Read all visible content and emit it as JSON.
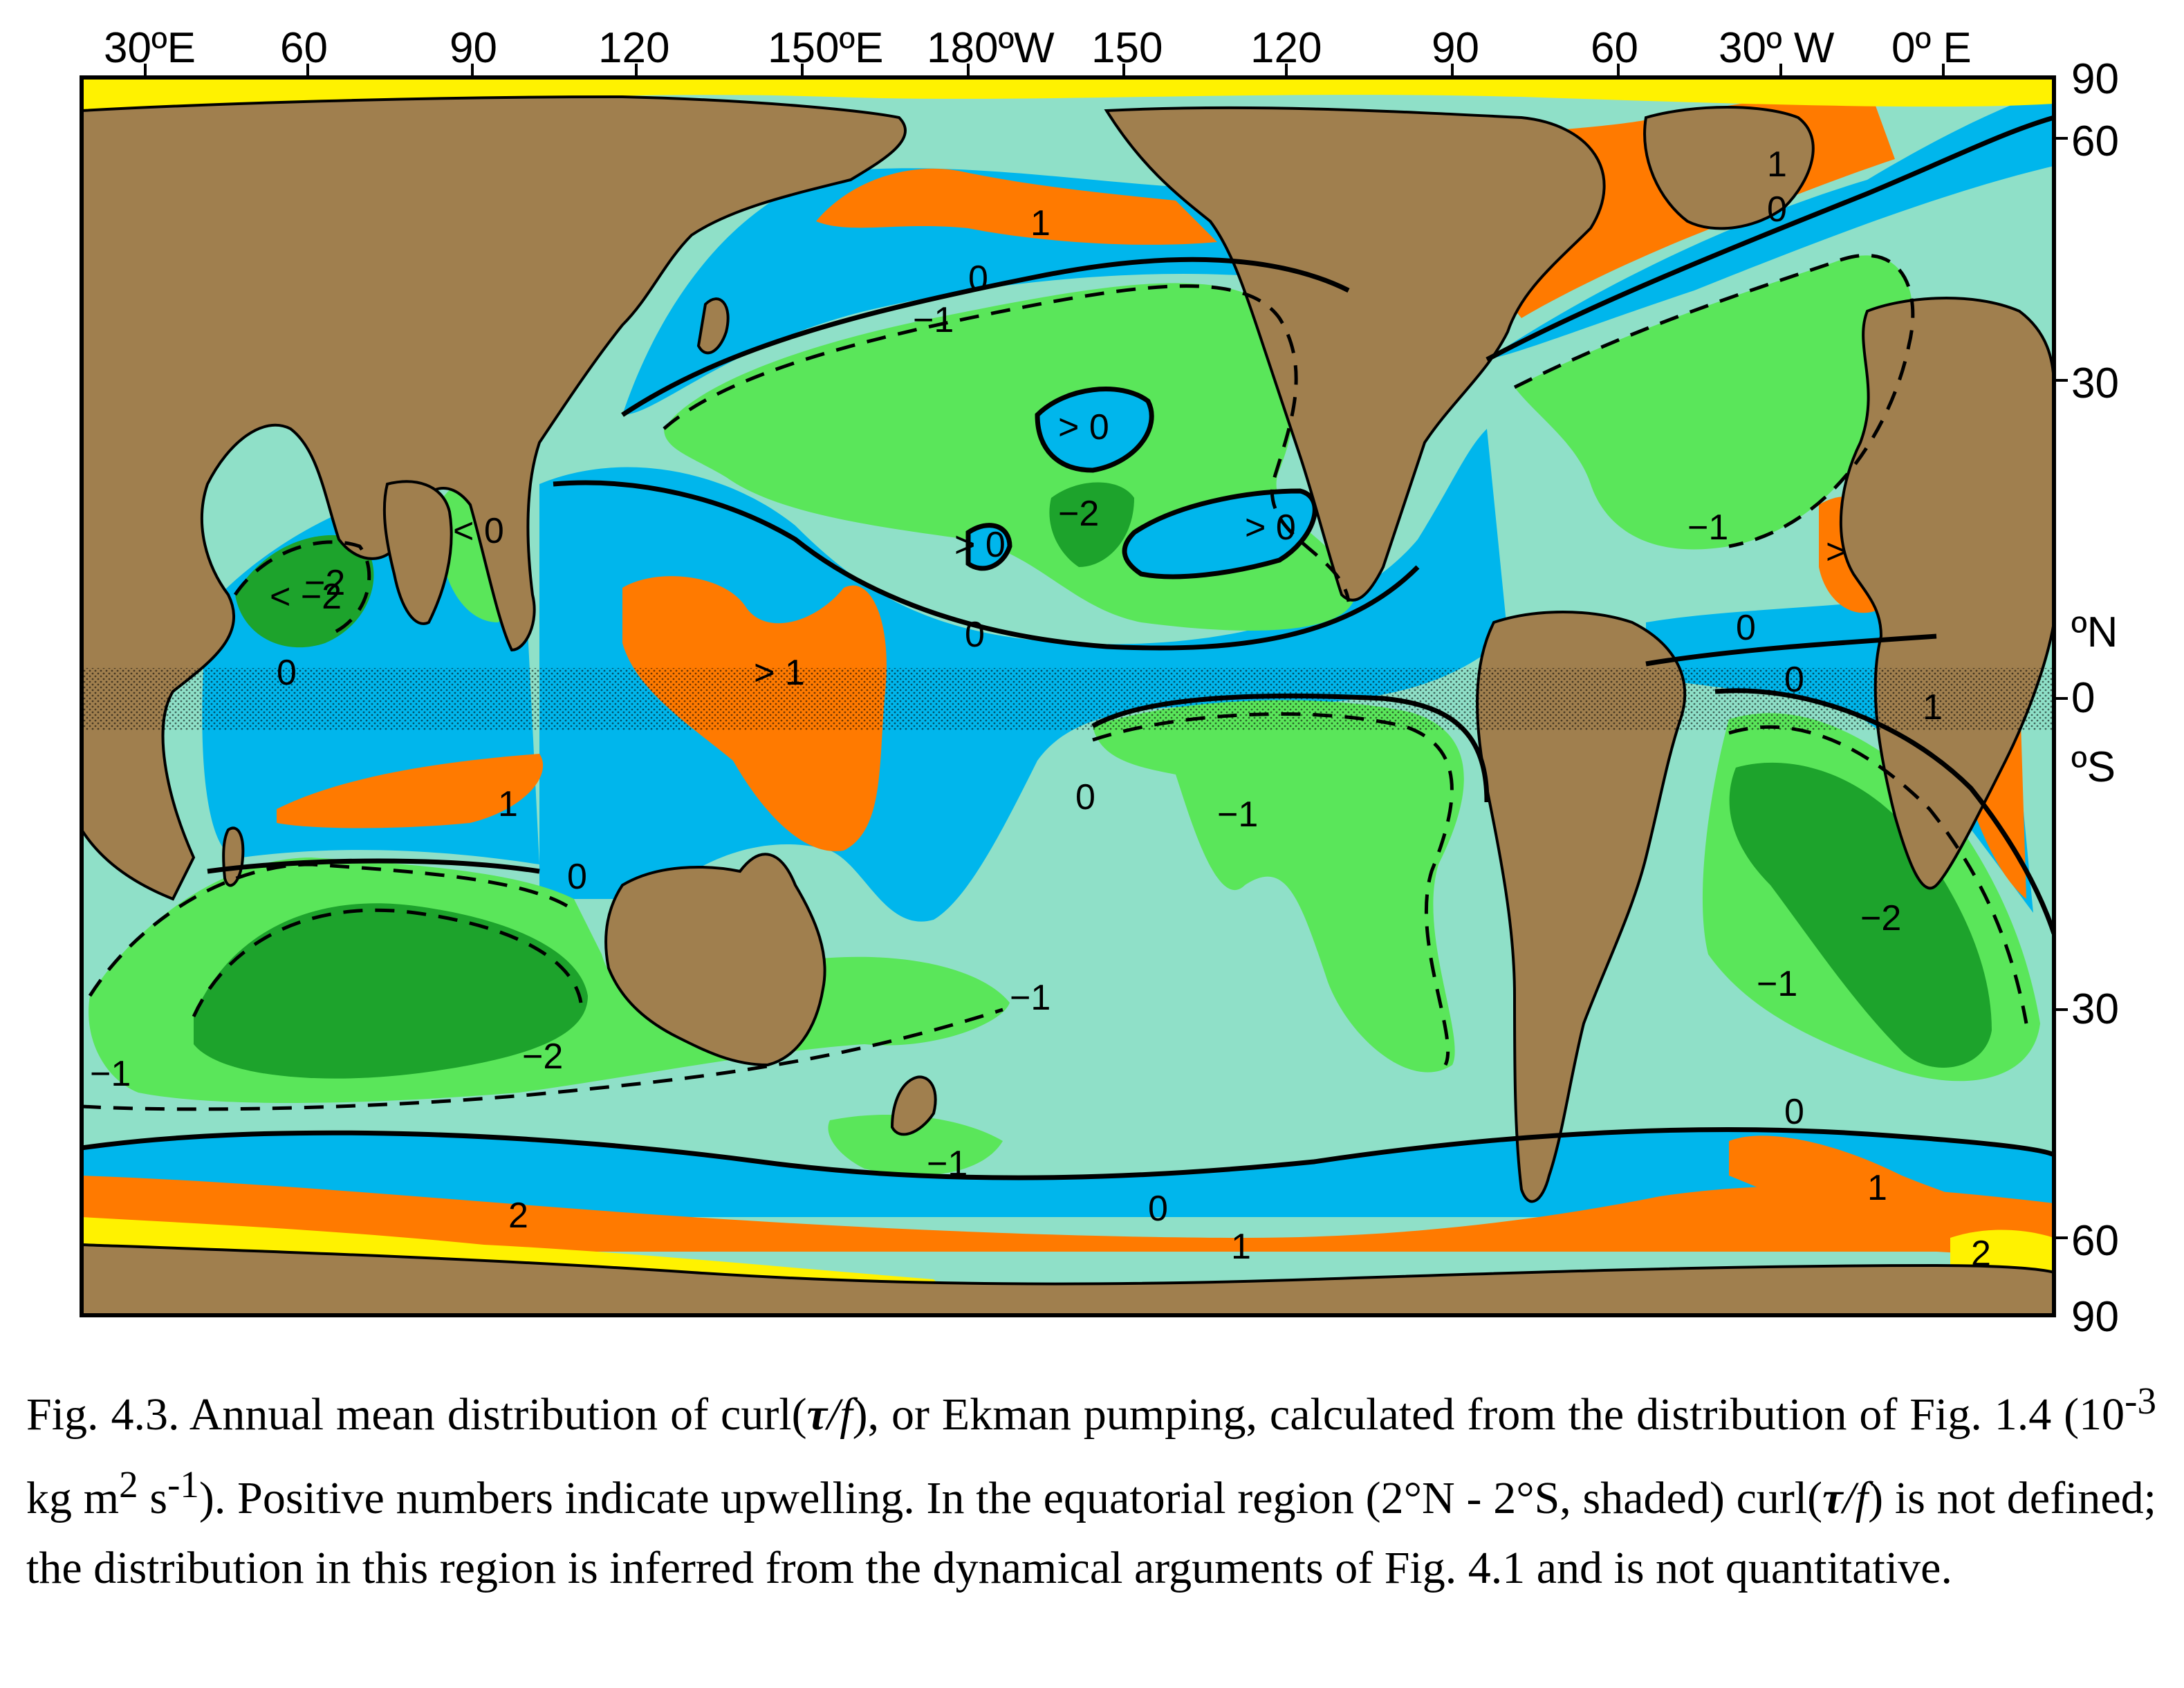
{
  "colors": {
    "land": "#A07F4E",
    "ice": "#FFF200",
    "upwelling_1": "#FF7A00",
    "positive": "#00B6EC",
    "negative_small": "#8FE0C8",
    "negative_1": "#5AE65A",
    "negative_2": "#1DA32C",
    "line": "#000000"
  },
  "axes": {
    "top_labels": [
      "30ºE",
      "60",
      "90",
      "120",
      "150ºE",
      "180ºW",
      "150",
      "120",
      "90",
      "60",
      "30º W",
      "0º E"
    ],
    "right_labels": [
      "90",
      "60",
      "30",
      "ºN",
      "0",
      "ºS",
      "30",
      "60",
      "90"
    ]
  },
  "contour_labels": [
    "1",
    "0",
    "1",
    "0",
    "−1",
    "> 0",
    "−2",
    "> 0",
    "> 0",
    "< −2",
    "< 0",
    "0",
    "> 1",
    "0",
    "−1",
    "0",
    "1",
    "1",
    "0",
    "0",
    "−1",
    "0",
    "−2",
    "−1",
    "−2",
    "−1",
    "−1",
    "0",
    "−1",
    "1",
    "0",
    "1",
    "2",
    "2",
    ">"
  ],
  "caption": {
    "p1": "Fig. 4.3. Annual mean distribution of curl(",
    "tau": "τ",
    "slash_f": "/f",
    "p2": "), or Ekman pumping, calculated from the distribution of Fig. 1.4 (10",
    "exp1": "-3",
    "p3": " kg m",
    "exp2": "2",
    "p4": " s",
    "exp3": "-1",
    "p5": "). Positive numbers indicate upwelling. In the equatorial region (2°N - 2°S, shaded) curl(",
    "p6": ") is not defined; the distribution in this region is inferred from the dynamical arguments of Fig. 4.1 and  is not quantitative."
  }
}
